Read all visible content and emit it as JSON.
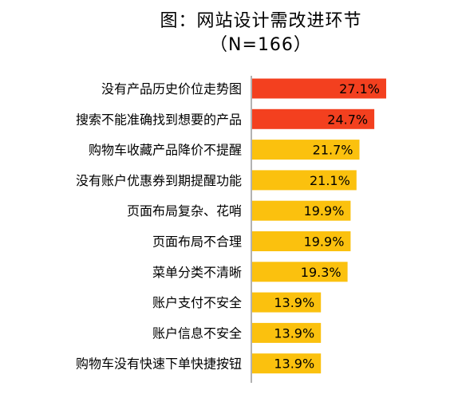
{
  "chart_data": {
    "type": "bar",
    "orientation": "horizontal",
    "title": "图：网站设计需改进环节",
    "subtitle": "（N=166）",
    "categories": [
      "没有产品历史价位走势图",
      "搜索不能准确找到想要的产品",
      "购物车收藏产品降价不提醒",
      "没有账户优惠券到期提醒功能",
      "页面布局复杂、花哨",
      "页面布局不合理",
      "菜单分类不清晰",
      "账户支付不安全",
      "账户信息不安全",
      "购物车没有快速下单快捷按钮"
    ],
    "values": [
      27.1,
      24.7,
      21.7,
      21.1,
      19.9,
      19.9,
      19.3,
      13.9,
      13.9,
      13.9
    ],
    "value_labels": [
      "27.1%",
      "24.7%",
      "21.7%",
      "21.1%",
      "19.9%",
      "19.9%",
      "19.3%",
      "13.9%",
      "13.9%",
      "13.9%"
    ],
    "colors": [
      "#f3401f",
      "#f3401f",
      "#fbc10e",
      "#fbc10e",
      "#fbc10e",
      "#fbc10e",
      "#fbc10e",
      "#fbc10e",
      "#fbc10e",
      "#fbc10e"
    ],
    "xlim": [
      0,
      27.1
    ],
    "grid": false,
    "legend": "none"
  }
}
